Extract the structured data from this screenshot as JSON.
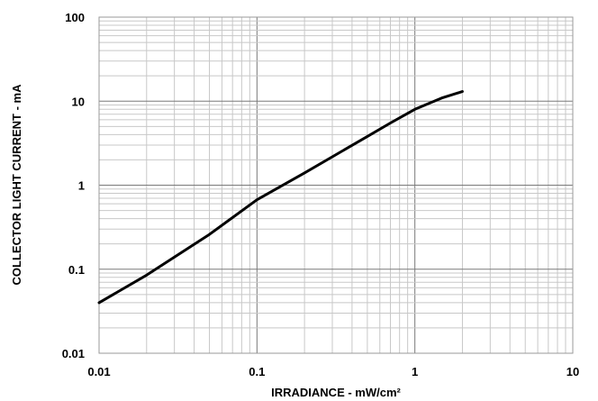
{
  "chart_data": {
    "type": "line",
    "title": "",
    "xlabel": "IRRADIANCE - mW/cm²",
    "ylabel": "COLLECTOR LIGHT CURRENT - mA",
    "x_scale": "log",
    "y_scale": "log",
    "xlim": [
      0.01,
      10
    ],
    "ylim": [
      0.01,
      100
    ],
    "x_tick_labels": [
      "0.01",
      "0.1",
      "1",
      "10"
    ],
    "y_tick_labels": [
      "0.01",
      "0.1",
      "1",
      "10",
      "100"
    ],
    "grid": true,
    "legend": "none",
    "series": [
      {
        "color": "#000000",
        "x": [
          0.01,
          0.02,
          0.05,
          0.1,
          0.2,
          0.5,
          0.7,
          1.0,
          1.5,
          2.0
        ],
        "y": [
          0.04,
          0.085,
          0.26,
          0.67,
          1.4,
          3.8,
          5.5,
          8.0,
          11.0,
          13.0
        ]
      }
    ]
  }
}
